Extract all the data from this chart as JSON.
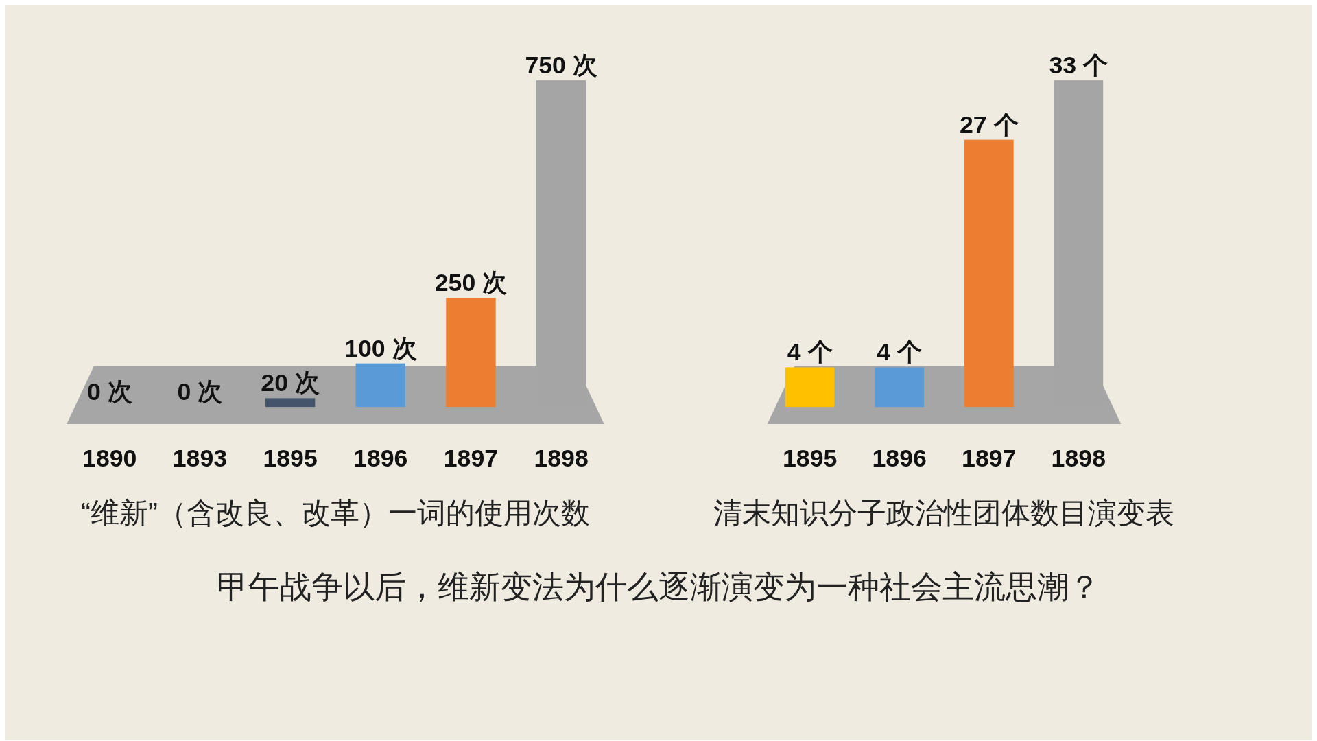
{
  "chart_data": [
    {
      "type": "bar",
      "title": "“维新”（含改良、改革）一词的使用次数",
      "categories": [
        "1890",
        "1893",
        "1895",
        "1896",
        "1897",
        "1898"
      ],
      "values": [
        0,
        0,
        20,
        100,
        250,
        750
      ],
      "colors": [
        "#a5a5a5",
        "#ffc000",
        "#44546a",
        "#5b9bd5",
        "#ed7d31",
        "#a5a5a5"
      ],
      "value_labels": [
        "0 次",
        "0 次",
        "20 次",
        "100 次",
        "250 次",
        "750 次"
      ],
      "annotations": [
        "甲午战争以后，维新变法为什么逐渐演变为一种社会主流思潮？"
      ]
    },
    {
      "type": "bar",
      "title": "清末知识分子政治性团体数目演变表",
      "categories": [
        "1895",
        "1896",
        "1897",
        "1898"
      ],
      "values": [
        4,
        4,
        27,
        33
      ],
      "colors": [
        "#ffc000",
        "#5b9bd5",
        "#ed7d31",
        "#a5a5a5"
      ],
      "value_labels": [
        "4 个",
        "4 个",
        "27 个",
        "33 个"
      ]
    }
  ]
}
